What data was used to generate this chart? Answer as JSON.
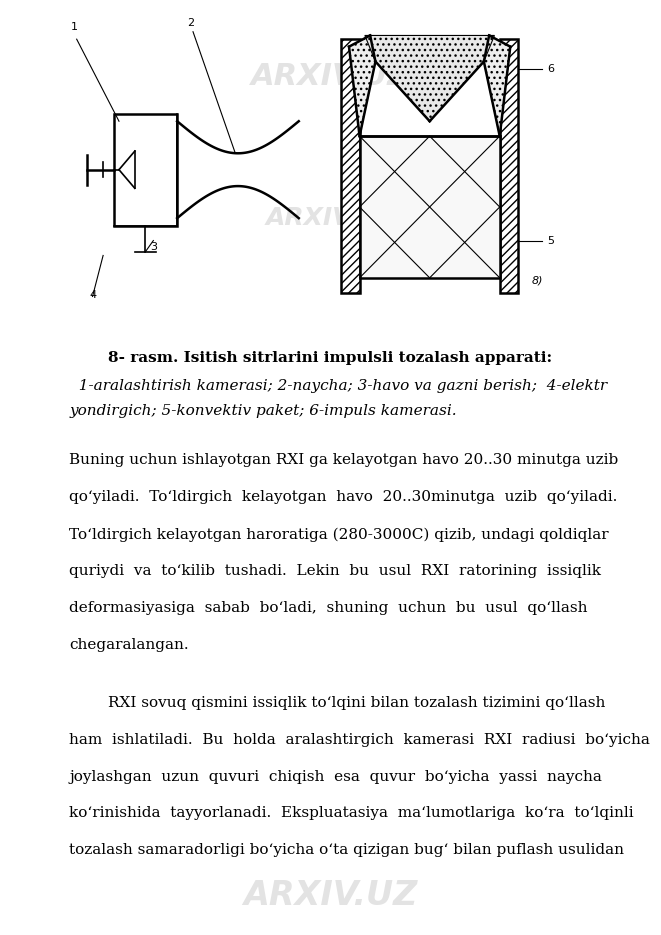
{
  "bg_color": "#ffffff",
  "fig_width": 6.61,
  "fig_height": 9.35,
  "dpi": 100,
  "title_bold": "8- rasm. Isitish sitrlarini impulsli tozalash apparati:",
  "caption_line1": "  1-aralashtirish kamerasi; 2-naycha; 3-havo va gazni berish;  4-elektr",
  "caption_line2": "yondirgich; 5-konvektiv paket; 6-impuls kamerasi.",
  "para1_lines": [
    "Buning uchun ishlayotgan RXI ga kelayotgan havo 20..30 minutga uzib",
    "qo‘yiladi.  To‘ldirgich  kelayotgan  havo  20..30minutga  uzib  qo‘yiladi.",
    "To‘ldirgich kelayotgan haroratiga (280-3000C) qizib, undagi qoldiqlar",
    "quriydi  va  to‘kilib  tushadi.  Lekin  bu  usul  RXI  ratorining  issiqlik",
    "deformasiyasiga  sabab  bo‘ladi,  shuning  uchun  bu  usul  qo‘llash",
    "chegaralangan."
  ],
  "para2_lines": [
    "        RXI sovuq qismini issiqlik to‘lqini bilan tozalash tizimini qo‘llash",
    "ham  ishlatiladi.  Bu  holda  aralashtirgich  kamerasi  RXI  radiusi  bo‘yicha",
    "joylashgan  uzun  quvuri  chiqish  esa  quvur  bo‘yicha  yassi  naycha",
    "ko‘rinishida  tayyorlanadi.  Ekspluatasiya  ma‘lumotlariga  ko‘ra  to‘lqinli",
    "tozalash samaradorligi bo‘yicha o‘ta qizigan bug‘ bilan puflash usulidan"
  ],
  "watermark_color": "#cccccc",
  "watermark_alpha": 0.55,
  "font_family": "DejaVu Serif",
  "title_fontsize": 11.0,
  "body_fontsize": 11.0,
  "caption_fontsize": 11.0
}
